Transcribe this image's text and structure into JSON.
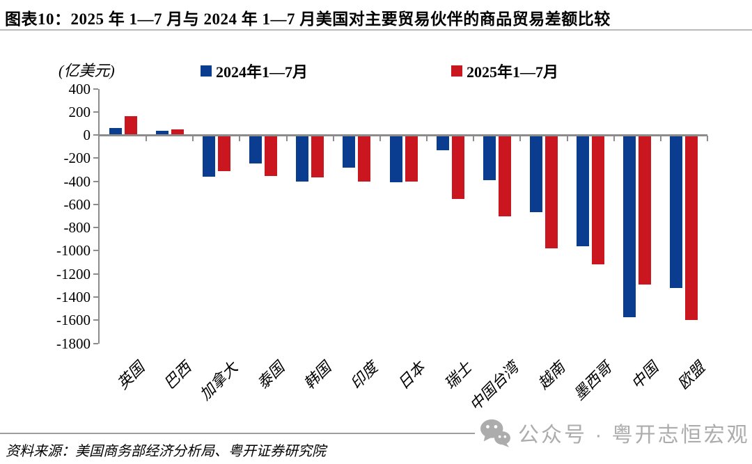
{
  "title": "图表10：2025 年 1—7 月与 2024 年 1—7 月美国对主要贸易伙伴的商品贸易差额比较",
  "source": "资料来源：美国商务部经济分析局、粤开证券研究院",
  "watermark": {
    "icon": "wechat-icon",
    "text": "公众号 · 粤开志恒宏观"
  },
  "colors": {
    "series_2024": "#0a3c8f",
    "series_2025": "#c9161f",
    "axis": "#8c8c8c",
    "watermark": "#acacac"
  },
  "chart_data": {
    "type": "bar",
    "title": "图表10：2025 年 1—7 月与 2024 年 1—7 月美国对主要贸易伙伴的商品贸易差额比较",
    "ylabel": "(亿美元)",
    "categories": [
      "英国",
      "巴西",
      "加拿大",
      "泰国",
      "韩国",
      "印度",
      "日本",
      "瑞士",
      "中国台湾",
      "越南",
      "墨西哥",
      "中国",
      "欧盟"
    ],
    "series": [
      {
        "name": "2024年1—7月",
        "color": "#0a3c8f",
        "values": [
          60,
          35,
          -360,
          -245,
          -400,
          -280,
          -410,
          -135,
          -390,
          -665,
          -960,
          -1575,
          -1320
        ]
      },
      {
        "name": "2025年1—7月",
        "color": "#c9161f",
        "values": [
          160,
          48,
          -315,
          -355,
          -365,
          -405,
          -405,
          -555,
          -705,
          -980,
          -1120,
          -1290,
          -1600
        ]
      }
    ],
    "ylim": [
      -1800,
      400
    ],
    "ytick_step": 200,
    "grid": false,
    "legend_position": "top"
  }
}
